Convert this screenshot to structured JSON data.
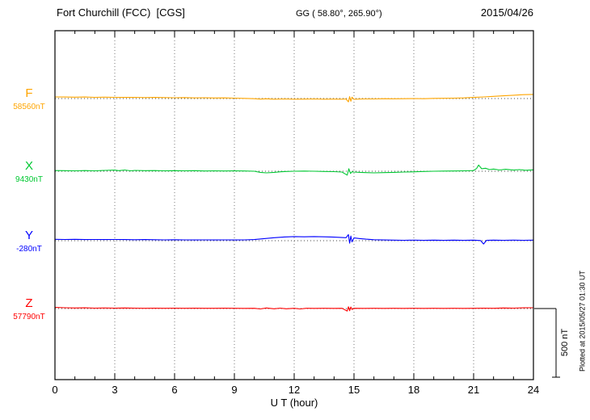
{
  "header": {
    "station": "Fort Churchill (FCC)  [CGS]",
    "coords": "GG ( 58.80°, 265.90°)",
    "date": "2015/04/26"
  },
  "plot": {
    "xlabel": "U T (hour)",
    "scale_label": "500 nT",
    "right_note": "Plotted at 2015/05/27 01:30 UT"
  },
  "components": [
    {
      "id": "F",
      "label": "F",
      "value_label": "58560nT",
      "color": "#FFA500"
    },
    {
      "id": "X",
      "label": "X",
      "value_label": "9430nT",
      "color": "#00C832"
    },
    {
      "id": "Y",
      "label": "Y",
      "value_label": "-280nT",
      "color": "#0000FF"
    },
    {
      "id": "Z",
      "label": "Z",
      "value_label": "57790nT",
      "color": "#FF0000"
    }
  ],
  "chart_data": {
    "type": "line",
    "title": "Fort Churchill (FCC) [CGS] magnetogram 2015/04/26",
    "xlabel": "U T (hour)",
    "x_range": [
      0,
      24
    ],
    "x_ticks": [
      0,
      3,
      6,
      9,
      12,
      15,
      18,
      21,
      24
    ],
    "grid": "dotted-vertical-at-3h",
    "scale_bar_nT": 500,
    "legend_position": "left-margin",
    "series": [
      {
        "name": "F",
        "baseline_nT": 58560,
        "color": "#FFA500",
        "units": "nT-deviation-from-baseline",
        "points": [
          [
            0,
            12
          ],
          [
            0.5,
            11
          ],
          [
            1,
            10
          ],
          [
            1.5,
            11
          ],
          [
            2,
            9
          ],
          [
            2.5,
            10
          ],
          [
            3,
            9
          ],
          [
            3.5,
            8
          ],
          [
            4,
            9
          ],
          [
            4.5,
            7
          ],
          [
            5,
            8
          ],
          [
            5.5,
            7
          ],
          [
            6,
            6
          ],
          [
            6.5,
            7
          ],
          [
            7,
            5
          ],
          [
            7.5,
            6
          ],
          [
            8,
            4
          ],
          [
            8.5,
            5
          ],
          [
            9,
            3
          ],
          [
            9.5,
            1
          ],
          [
            10,
            -1
          ],
          [
            10.3,
            -4
          ],
          [
            10.6,
            -2
          ],
          [
            11,
            -5
          ],
          [
            11.5,
            -3
          ],
          [
            12,
            -5
          ],
          [
            12.5,
            -4
          ],
          [
            13,
            -3
          ],
          [
            13.5,
            -5
          ],
          [
            14,
            -4
          ],
          [
            14.4,
            -5
          ],
          [
            14.6,
            -3
          ],
          [
            14.72,
            -24
          ],
          [
            14.78,
            14
          ],
          [
            14.84,
            -20
          ],
          [
            14.9,
            10
          ],
          [
            15,
            -6
          ],
          [
            15.2,
            -4
          ],
          [
            15.5,
            -3
          ],
          [
            16,
            -3
          ],
          [
            16.5,
            -1
          ],
          [
            17,
            -2
          ],
          [
            17.5,
            -1
          ],
          [
            18,
            0
          ],
          [
            18.5,
            -1
          ],
          [
            19,
            1
          ],
          [
            19.5,
            2
          ],
          [
            20,
            3
          ],
          [
            20.5,
            5
          ],
          [
            21,
            8
          ],
          [
            21.5,
            12
          ],
          [
            22,
            16
          ],
          [
            22.5,
            20
          ],
          [
            23,
            24
          ],
          [
            23.5,
            28
          ],
          [
            24,
            30
          ]
        ]
      },
      {
        "name": "X",
        "baseline_nT": 9430,
        "color": "#00C832",
        "units": "nT-deviation-from-baseline",
        "points": [
          [
            0,
            5
          ],
          [
            0.5,
            4
          ],
          [
            1,
            3
          ],
          [
            1.5,
            5
          ],
          [
            2,
            3
          ],
          [
            2.5,
            6
          ],
          [
            3,
            8
          ],
          [
            3.2,
            4
          ],
          [
            3.5,
            9
          ],
          [
            3.8,
            3
          ],
          [
            4,
            6
          ],
          [
            4.5,
            4
          ],
          [
            5,
            5
          ],
          [
            5.5,
            3
          ],
          [
            6,
            4
          ],
          [
            6.5,
            3
          ],
          [
            7,
            4
          ],
          [
            7.5,
            2
          ],
          [
            8,
            3
          ],
          [
            8.5,
            2
          ],
          [
            9,
            3
          ],
          [
            9.5,
            2
          ],
          [
            10,
            0
          ],
          [
            10.3,
            -8
          ],
          [
            10.6,
            -12
          ],
          [
            11,
            -8
          ],
          [
            11.3,
            -4
          ],
          [
            11.6,
            -2
          ],
          [
            12,
            0
          ],
          [
            12.5,
            1
          ],
          [
            13,
            0
          ],
          [
            13.5,
            -2
          ],
          [
            14,
            -3
          ],
          [
            14.4,
            -6
          ],
          [
            14.66,
            -28
          ],
          [
            14.74,
            18
          ],
          [
            14.82,
            -16
          ],
          [
            14.9,
            -4
          ],
          [
            15,
            -6
          ],
          [
            15.3,
            -8
          ],
          [
            15.6,
            -10
          ],
          [
            16,
            -12
          ],
          [
            16.5,
            -10
          ],
          [
            17,
            -8
          ],
          [
            17.5,
            -6
          ],
          [
            18,
            -4
          ],
          [
            18.5,
            -2
          ],
          [
            19,
            0
          ],
          [
            19.5,
            1
          ],
          [
            20,
            2
          ],
          [
            20.5,
            3
          ],
          [
            21,
            5
          ],
          [
            21.15,
            20
          ],
          [
            21.25,
            45
          ],
          [
            21.4,
            18
          ],
          [
            21.6,
            22
          ],
          [
            21.8,
            12
          ],
          [
            22,
            16
          ],
          [
            22.3,
            9
          ],
          [
            22.6,
            14
          ],
          [
            23,
            8
          ],
          [
            23.3,
            12
          ],
          [
            23.6,
            7
          ],
          [
            24,
            10
          ]
        ]
      },
      {
        "name": "Y",
        "baseline_nT": -280,
        "color": "#0000FF",
        "units": "nT-deviation-from-baseline",
        "points": [
          [
            0,
            10
          ],
          [
            0.5,
            9
          ],
          [
            1,
            10
          ],
          [
            1.5,
            8
          ],
          [
            2,
            9
          ],
          [
            2.5,
            8
          ],
          [
            3,
            9
          ],
          [
            3.5,
            8
          ],
          [
            4,
            7
          ],
          [
            4.5,
            8
          ],
          [
            5,
            7
          ],
          [
            5.5,
            6
          ],
          [
            6,
            7
          ],
          [
            6.5,
            6
          ],
          [
            7,
            5
          ],
          [
            7.5,
            6
          ],
          [
            8,
            5
          ],
          [
            8.5,
            6
          ],
          [
            9,
            5
          ],
          [
            9.5,
            6
          ],
          [
            10,
            8
          ],
          [
            10.5,
            15
          ],
          [
            11,
            22
          ],
          [
            11.5,
            27
          ],
          [
            12,
            30
          ],
          [
            12.5,
            28
          ],
          [
            13,
            30
          ],
          [
            13.5,
            28
          ],
          [
            14,
            26
          ],
          [
            14.3,
            24
          ],
          [
            14.6,
            22
          ],
          [
            14.72,
            44
          ],
          [
            14.78,
            -18
          ],
          [
            14.84,
            34
          ],
          [
            14.9,
            -8
          ],
          [
            15,
            20
          ],
          [
            15.3,
            15
          ],
          [
            15.6,
            11
          ],
          [
            16,
            7
          ],
          [
            16.5,
            5
          ],
          [
            17,
            4
          ],
          [
            17.5,
            3
          ],
          [
            18,
            4
          ],
          [
            18.5,
            3
          ],
          [
            19,
            4
          ],
          [
            19.5,
            3
          ],
          [
            20,
            4
          ],
          [
            20.5,
            3
          ],
          [
            21,
            4
          ],
          [
            21.35,
            1
          ],
          [
            21.5,
            -24
          ],
          [
            21.65,
            3
          ],
          [
            22,
            4
          ],
          [
            22.5,
            3
          ],
          [
            23,
            4
          ],
          [
            23.5,
            3
          ],
          [
            24,
            4
          ]
        ]
      },
      {
        "name": "Z",
        "baseline_nT": 57790,
        "color": "#FF0000",
        "units": "nT-deviation-from-baseline",
        "points": [
          [
            0,
            8
          ],
          [
            0.5,
            6
          ],
          [
            1,
            4
          ],
          [
            1.5,
            5
          ],
          [
            2,
            3
          ],
          [
            2.5,
            4
          ],
          [
            3,
            3
          ],
          [
            3.5,
            4
          ],
          [
            4,
            3
          ],
          [
            4.5,
            2
          ],
          [
            5,
            3
          ],
          [
            5.5,
            2
          ],
          [
            6,
            3
          ],
          [
            6.5,
            2
          ],
          [
            7,
            3
          ],
          [
            7.5,
            2
          ],
          [
            8,
            2
          ],
          [
            8.5,
            3
          ],
          [
            9,
            2
          ],
          [
            9.5,
            1
          ],
          [
            10,
            2
          ],
          [
            10.3,
            -3
          ],
          [
            10.6,
            4
          ],
          [
            11,
            -2
          ],
          [
            11.3,
            3
          ],
          [
            11.6,
            -2
          ],
          [
            12,
            2
          ],
          [
            12.3,
            -3
          ],
          [
            12.6,
            2
          ],
          [
            13,
            1
          ],
          [
            13.5,
            2
          ],
          [
            14,
            1
          ],
          [
            14.4,
            2
          ],
          [
            14.66,
            -18
          ],
          [
            14.72,
            13
          ],
          [
            14.78,
            -16
          ],
          [
            14.84,
            11
          ],
          [
            14.9,
            -7
          ],
          [
            15,
            2
          ],
          [
            15.5,
            1
          ],
          [
            16,
            2
          ],
          [
            16.5,
            1
          ],
          [
            17,
            2
          ],
          [
            17.5,
            1
          ],
          [
            18,
            2
          ],
          [
            18.5,
            1
          ],
          [
            19,
            2
          ],
          [
            19.5,
            1
          ],
          [
            20,
            2
          ],
          [
            20.5,
            1
          ],
          [
            21,
            2
          ],
          [
            21.5,
            3
          ],
          [
            22,
            2
          ],
          [
            22.5,
            4
          ],
          [
            23,
            3
          ],
          [
            23.5,
            5
          ],
          [
            24,
            6
          ]
        ]
      }
    ]
  }
}
